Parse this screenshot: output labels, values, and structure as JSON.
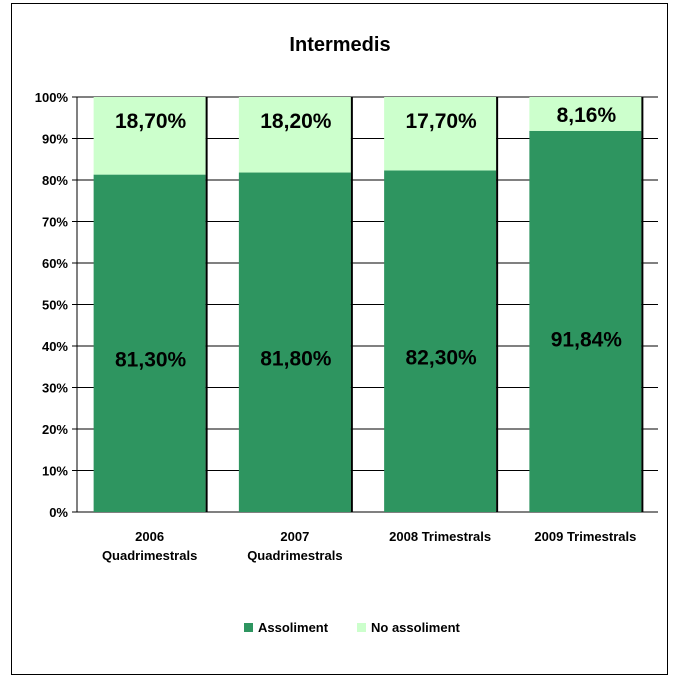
{
  "chart_data": {
    "type": "bar",
    "stacked": true,
    "percent": true,
    "title": "Intermedis",
    "categories": [
      [
        "2006",
        "Quadrimestrals"
      ],
      [
        "2007",
        "Quadrimestrals"
      ],
      [
        "2008 Trimestrals"
      ],
      [
        "2009 Trimestrals"
      ]
    ],
    "series": [
      {
        "name": "Assoliment",
        "values": [
          81.3,
          81.8,
          82.3,
          91.84
        ],
        "labels": [
          "81,30%",
          "81,80%",
          "82,30%",
          "91,84%"
        ],
        "color": "#2E9560"
      },
      {
        "name": "No assoliment",
        "values": [
          18.7,
          18.2,
          17.7,
          8.16
        ],
        "labels": [
          "18,70%",
          "18,20%",
          "17,70%",
          "8,16%"
        ],
        "color": "#CCFFCC"
      }
    ],
    "y_ticks": [
      "0%",
      "10%",
      "20%",
      "30%",
      "40%",
      "50%",
      "60%",
      "70%",
      "80%",
      "90%",
      "100%"
    ],
    "ylim": [
      0,
      100
    ],
    "grid": true,
    "legend": "bottom"
  }
}
